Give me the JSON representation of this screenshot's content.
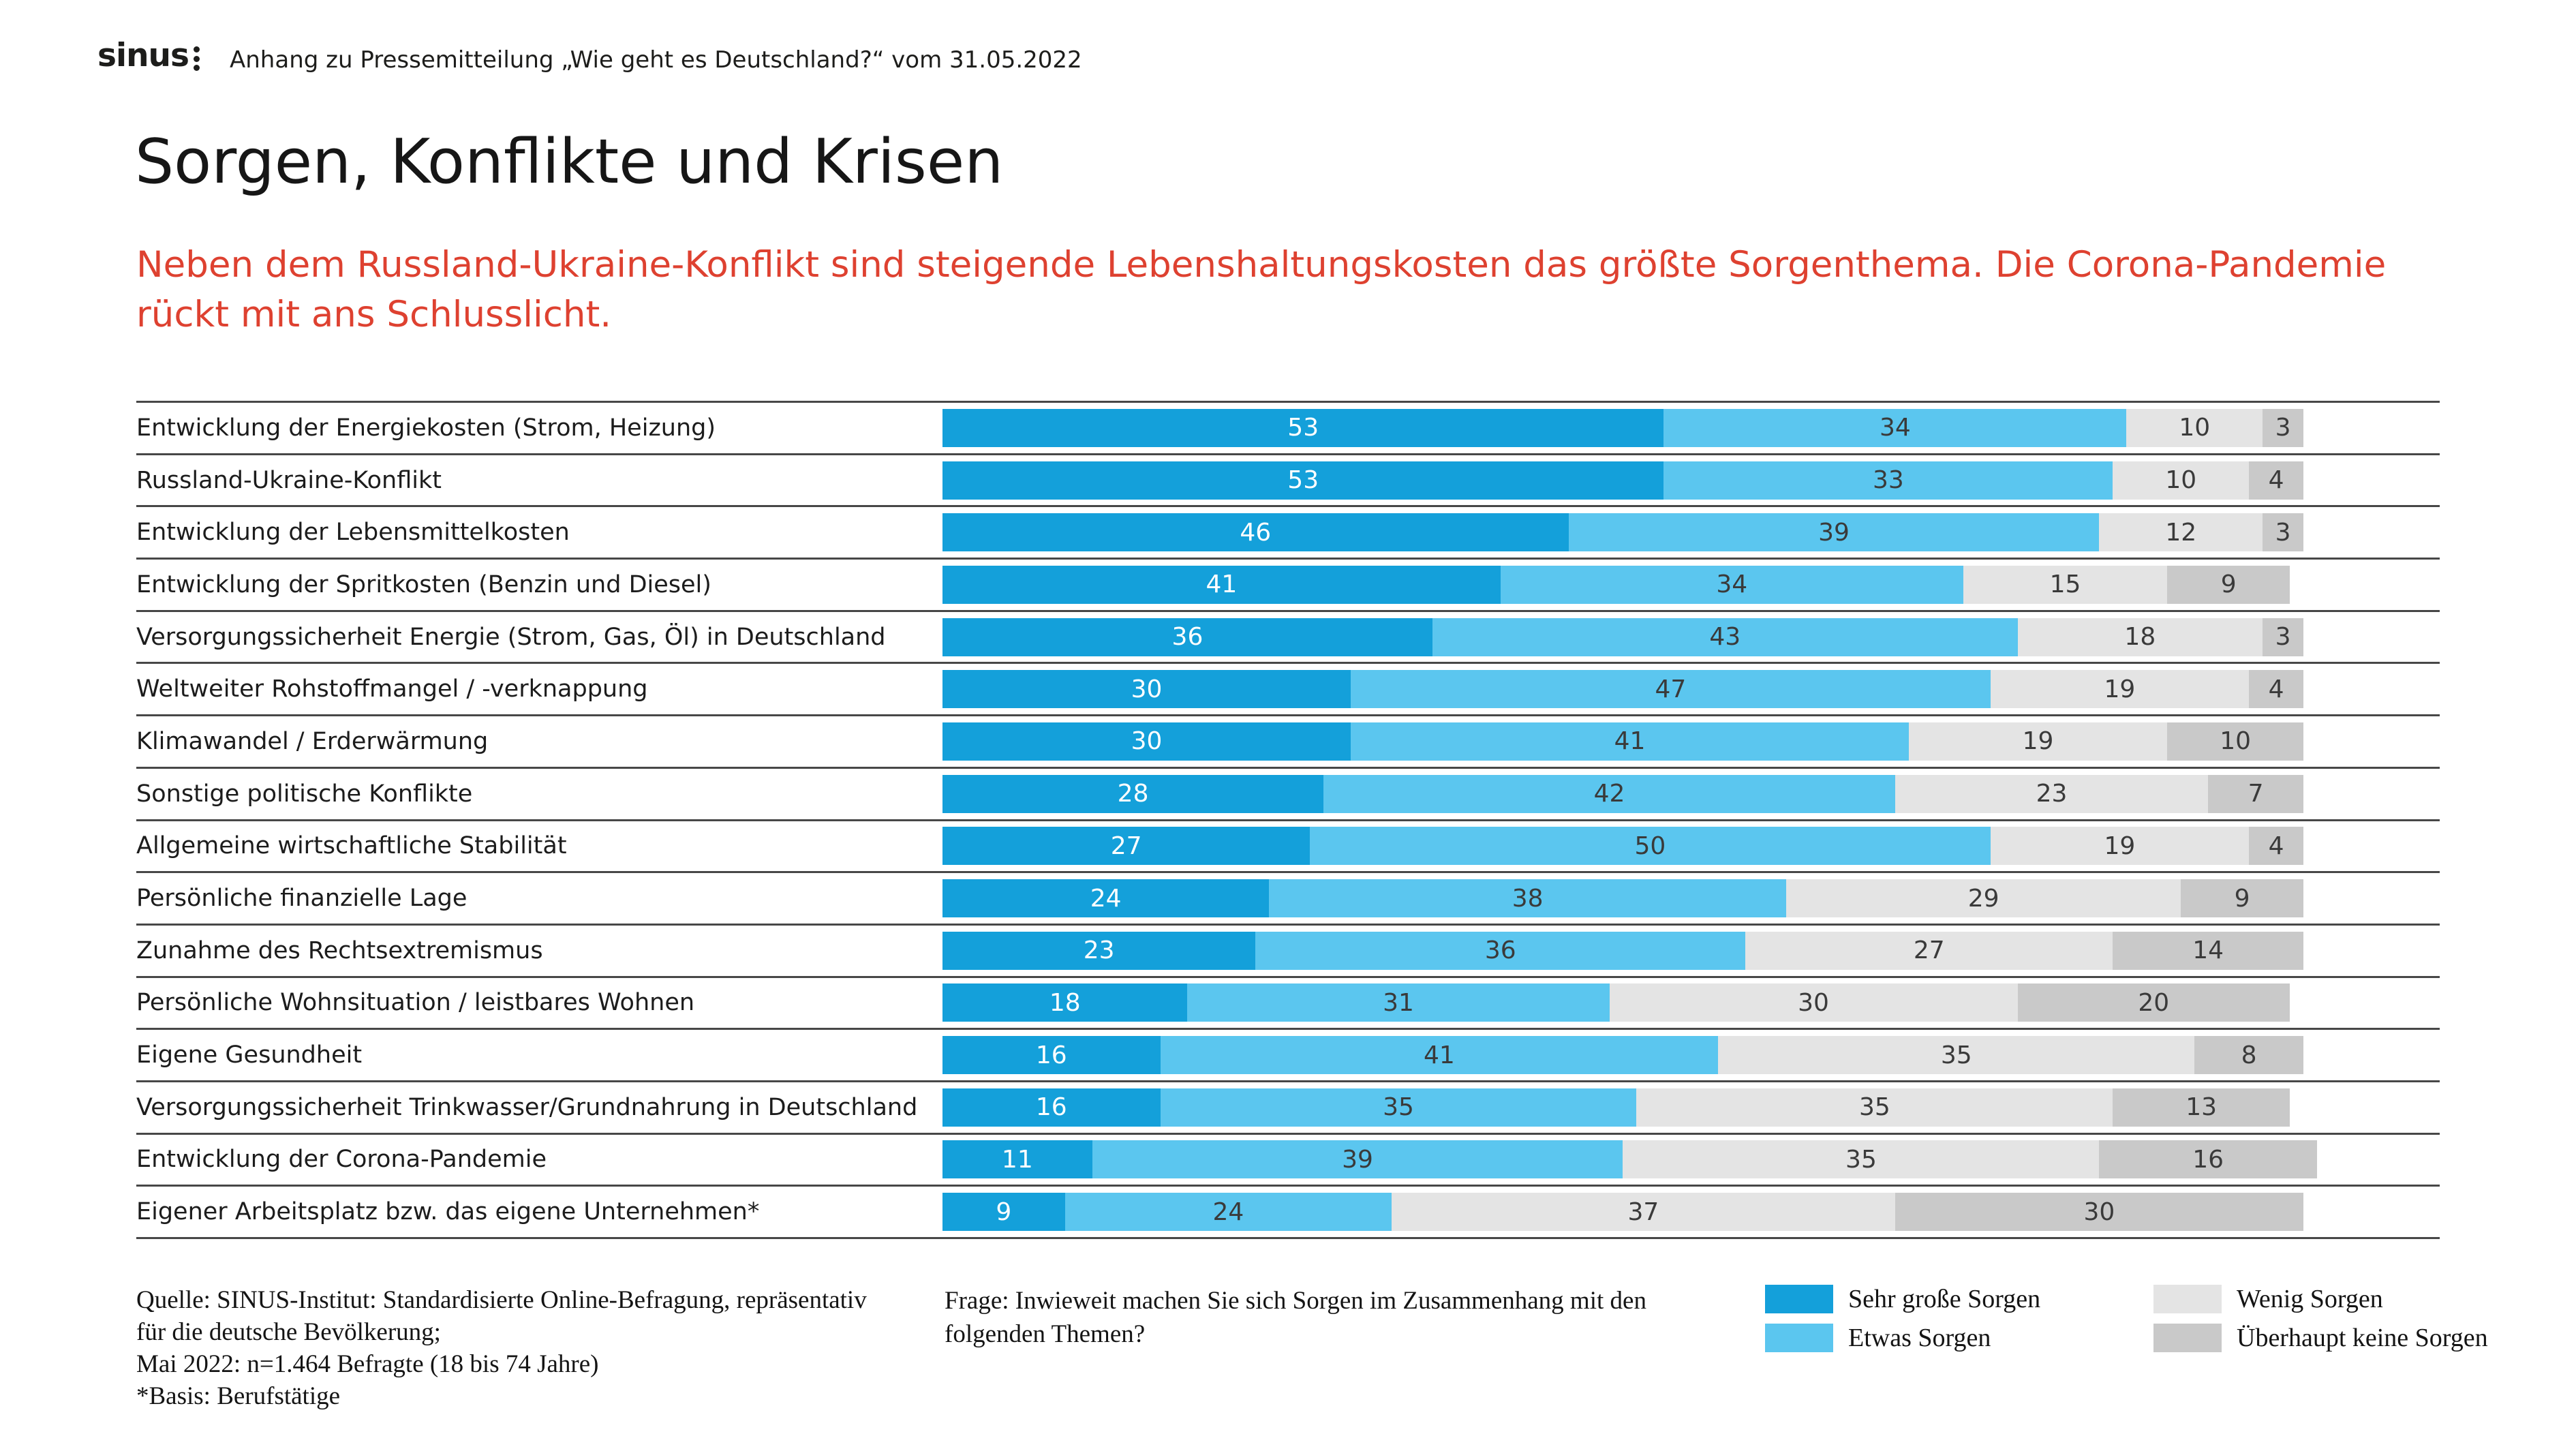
{
  "header": {
    "logo_text": "sinus",
    "note": "Anhang zu Pressemitteilung „Wie geht es Deutschland?“  vom 31.05.2022"
  },
  "title": "Sorgen, Konflikte und Krisen",
  "subtitle": "Neben dem Russland-Ukraine-Konflikt sind steigende Lebenshaltungskosten das größte Sorgenthema. Die Corona-Pandemie rückt mit ans Schlusslicht.",
  "chart_data": {
    "type": "bar",
    "orientation": "horizontal-stacked",
    "unit": "percent",
    "xlim": [
      0,
      100
    ],
    "grid": false,
    "legend_position": "bottom-right",
    "categories": [
      "Entwicklung der Energiekosten (Strom, Heizung)",
      "Russland-Ukraine-Konflikt",
      "Entwicklung der Lebensmittelkosten",
      "Entwicklung der Spritkosten (Benzin und Diesel)",
      "Versorgungssicherheit Energie (Strom, Gas, Öl) in Deutschland",
      "Weltweiter Rohstoffmangel / -verknappung",
      "Klimawandel / Erderwärmung",
      "Sonstige politische Konflikte",
      "Allgemeine wirtschaftliche Stabilität",
      "Persönliche finanzielle Lage",
      "Zunahme des Rechtsextremismus",
      "Persönliche Wohnsituation / leistbares Wohnen",
      "Eigene Gesundheit",
      "Versorgungssicherheit Trinkwasser/Grundnahrung in Deutschland",
      "Entwicklung der Corona-Pandemie",
      "Eigener Arbeitsplatz bzw. das eigene Unternehmen*"
    ],
    "series": [
      {
        "name": "Sehr große Sorgen",
        "color": "#14a0da",
        "text_color": "#ffffff",
        "values": [
          53,
          53,
          46,
          41,
          36,
          30,
          30,
          28,
          27,
          24,
          23,
          18,
          16,
          16,
          11,
          9
        ]
      },
      {
        "name": "Etwas Sorgen",
        "color": "#5bc6ef",
        "text_color": "#3a3a3a",
        "values": [
          34,
          33,
          39,
          34,
          43,
          47,
          41,
          42,
          50,
          38,
          36,
          31,
          41,
          35,
          39,
          24
        ]
      },
      {
        "name": "Wenig Sorgen",
        "color": "#e4e4e4",
        "text_color": "#3a3a3a",
        "values": [
          10,
          10,
          12,
          15,
          18,
          19,
          19,
          23,
          19,
          29,
          27,
          30,
          35,
          35,
          35,
          37
        ]
      },
      {
        "name": "Überhaupt keine Sorgen",
        "color": "#c9c9c9",
        "text_color": "#3a3a3a",
        "values": [
          3,
          4,
          3,
          9,
          3,
          4,
          10,
          7,
          4,
          9,
          14,
          20,
          8,
          13,
          16,
          30
        ]
      }
    ]
  },
  "legend": {
    "items": [
      {
        "label": "Sehr große Sorgen",
        "color": "#14a0da"
      },
      {
        "label": "Etwas Sorgen",
        "color": "#5bc6ef"
      },
      {
        "label": "Wenig Sorgen",
        "color": "#e4e4e4"
      },
      {
        "label": "Überhaupt keine Sorgen",
        "color": "#c9c9c9"
      }
    ]
  },
  "footer": {
    "source_lines": [
      "Quelle: SINUS-Institut: Standardisierte Online-Befragung, repräsentativ",
      "für die deutsche Bevölkerung;",
      "Mai 2022: n=1.464 Befragte (18 bis 74 Jahre)",
      "*Basis: Berufstätige"
    ],
    "question_lines": [
      "Frage: Inwieweit machen Sie sich Sorgen im Zusammenhang mit den",
      "folgenden Themen?"
    ]
  }
}
